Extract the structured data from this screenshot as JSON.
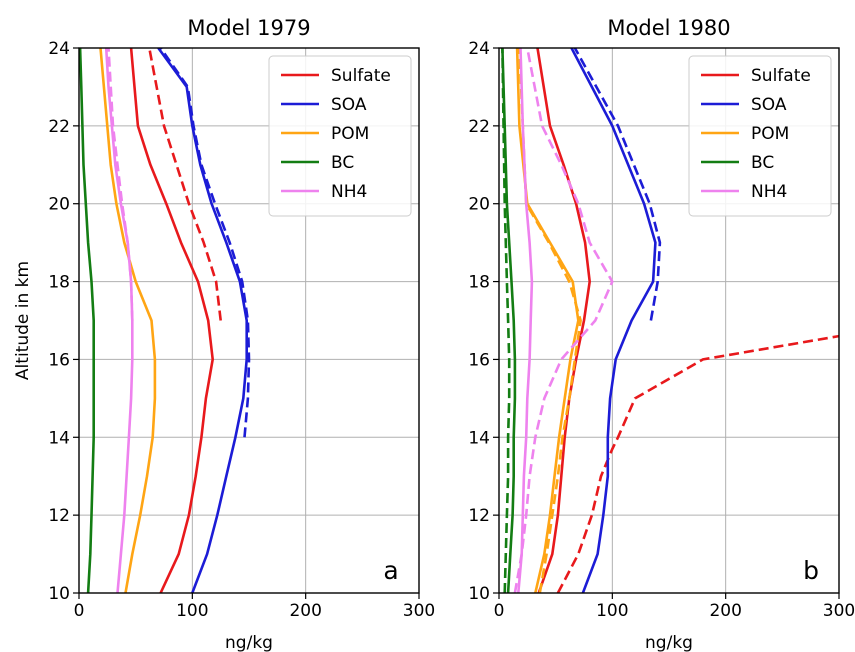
{
  "chart_data": [
    {
      "type": "line",
      "title": "Model 1979",
      "xlabel": "ng/kg",
      "ylabel": "Altitude in km",
      "xlim": [
        0,
        300
      ],
      "ylim": [
        10,
        24
      ],
      "xticks": [
        0,
        100,
        200,
        300
      ],
      "yticks": [
        10,
        12,
        14,
        16,
        18,
        20,
        22,
        24
      ],
      "grid": true,
      "legend_position": "top-right",
      "panel_label": "a",
      "legend": [
        {
          "name": "Sulfate",
          "color": "#e8191c"
        },
        {
          "name": "SOA",
          "color": "#1c1cd6"
        },
        {
          "name": "POM",
          "color": "#ffa514"
        },
        {
          "name": "BC",
          "color": "#137d13"
        },
        {
          "name": "NH4",
          "color": "#ee82ee"
        }
      ],
      "series": [
        {
          "name": "Sulfate",
          "color": "#e8191c",
          "style": "solid",
          "x": [
            72,
            88,
            97,
            103,
            108,
            112,
            118,
            114,
            105,
            90,
            77,
            63,
            52,
            46
          ],
          "y": [
            10,
            11,
            12,
            13,
            14,
            15,
            16,
            17,
            18,
            19,
            20,
            21,
            22,
            24
          ]
        },
        {
          "name": "Sulfate",
          "color": "#e8191c",
          "style": "dashed",
          "x": [
            125,
            121,
            110,
            97,
            86,
            75,
            62
          ],
          "y": [
            17,
            18,
            19,
            20,
            21,
            22,
            24
          ]
        },
        {
          "name": "SOA",
          "color": "#1c1cd6",
          "style": "solid",
          "x": [
            100,
            113,
            122,
            130,
            138,
            145,
            148,
            148,
            142,
            130,
            117,
            107,
            100,
            95,
            70
          ],
          "y": [
            10,
            11,
            12,
            13,
            14,
            15,
            16,
            17,
            18,
            19,
            20,
            21,
            22,
            23,
            24
          ]
        },
        {
          "name": "SOA",
          "color": "#1c1cd6",
          "style": "dashed",
          "x": [
            146,
            149,
            150,
            149,
            144,
            133,
            120,
            108,
            101,
            96,
            72
          ],
          "y": [
            14,
            15,
            16,
            17,
            18,
            19,
            20,
            21,
            22,
            23,
            24
          ]
        },
        {
          "name": "POM",
          "color": "#ffa514",
          "style": "solid",
          "x": [
            41,
            47,
            54,
            60,
            65,
            67,
            67,
            64,
            50,
            40,
            33,
            28,
            25,
            22,
            19
          ],
          "y": [
            10,
            11,
            12,
            13,
            14,
            15,
            16,
            17,
            18,
            19,
            20,
            21,
            22,
            23,
            24
          ]
        },
        {
          "name": "BC",
          "color": "#137d13",
          "style": "solid",
          "x": [
            8,
            10,
            11,
            12,
            13,
            13,
            13,
            13,
            11,
            8,
            6,
            4,
            3,
            2,
            1
          ],
          "y": [
            10,
            11,
            12,
            13,
            14,
            15,
            16,
            17,
            18,
            19,
            20,
            21,
            22,
            23,
            24
          ]
        },
        {
          "name": "NH4",
          "color": "#ee82ee",
          "style": "solid",
          "x": [
            34,
            37,
            40,
            42,
            44,
            46,
            47,
            47,
            46,
            43,
            37,
            32,
            29,
            26,
            24
          ],
          "y": [
            10,
            11,
            12,
            13,
            14,
            15,
            16,
            17,
            18,
            19,
            20,
            21,
            22,
            23,
            24
          ]
        },
        {
          "name": "NH4",
          "color": "#ee82ee",
          "style": "dashed",
          "x": [
            47,
            46,
            43,
            38,
            34,
            30,
            26
          ],
          "y": [
            17,
            18,
            19,
            20,
            21,
            22,
            24
          ]
        }
      ]
    },
    {
      "type": "line",
      "title": "Model 1980",
      "xlabel": "ng/kg",
      "ylabel": "",
      "xlim": [
        0,
        300
      ],
      "ylim": [
        10,
        24
      ],
      "xticks": [
        0,
        100,
        200,
        300
      ],
      "yticks": [
        10,
        12,
        14,
        16,
        18,
        20,
        22,
        24
      ],
      "grid": true,
      "legend_position": "top-right",
      "panel_label": "b",
      "legend": [
        {
          "name": "Sulfate",
          "color": "#e8191c"
        },
        {
          "name": "SOA",
          "color": "#1c1cd6"
        },
        {
          "name": "POM",
          "color": "#ffa514"
        },
        {
          "name": "BC",
          "color": "#137d13"
        },
        {
          "name": "NH4",
          "color": "#ee82ee"
        }
      ],
      "series": [
        {
          "name": "Sulfate",
          "color": "#e8191c",
          "style": "solid",
          "x": [
            35,
            47,
            52,
            55,
            58,
            62,
            68,
            75,
            80,
            76,
            68,
            57,
            45,
            34
          ],
          "y": [
            10,
            11,
            12,
            13,
            14,
            15,
            16,
            17,
            18,
            19,
            20,
            21,
            22,
            24
          ]
        },
        {
          "name": "Sulfate",
          "color": "#e8191c",
          "style": "dashed",
          "x": [
            52,
            70,
            82,
            90,
            100,
            105,
            120,
            180,
            300
          ],
          "y": [
            10,
            11,
            12,
            13,
            13.7,
            14,
            15,
            16,
            16.6
          ]
        },
        {
          "name": "SOA",
          "color": "#1c1cd6",
          "style": "solid",
          "x": [
            74,
            87,
            92,
            96,
            96,
            98,
            103,
            117,
            136,
            138,
            128,
            100,
            64
          ],
          "y": [
            10,
            11,
            12,
            13,
            14,
            15,
            16,
            17,
            18,
            19,
            20,
            22,
            24
          ]
        },
        {
          "name": "SOA",
          "color": "#1c1cd6",
          "style": "dashed",
          "x": [
            134,
            140,
            142,
            133,
            105,
            67
          ],
          "y": [
            17,
            18,
            19,
            20,
            22,
            24
          ]
        },
        {
          "name": "POM",
          "color": "#ffa514",
          "style": "solid",
          "x": [
            32,
            40,
            45,
            49,
            53,
            58,
            63,
            70,
            65,
            45,
            25,
            18,
            16
          ],
          "y": [
            10,
            11,
            12,
            13,
            14,
            15,
            16,
            17,
            18,
            19,
            20,
            22,
            24
          ]
        },
        {
          "name": "POM",
          "color": "#ffa514",
          "style": "dashed",
          "x": [
            36,
            42,
            47,
            52,
            56,
            62,
            67,
            72,
            62,
            44,
            24,
            18
          ],
          "y": [
            10,
            11,
            12,
            13,
            14,
            15,
            16,
            17,
            18,
            19,
            20,
            24
          ]
        },
        {
          "name": "BC",
          "color": "#137d13",
          "style": "solid",
          "x": [
            8,
            10,
            12,
            13,
            13,
            14,
            14,
            13,
            11,
            9,
            7,
            5,
            3
          ],
          "y": [
            10,
            11,
            12,
            13,
            14,
            15,
            16,
            17,
            18,
            19,
            20,
            22,
            24
          ]
        },
        {
          "name": "BC",
          "color": "#137d13",
          "style": "dashed",
          "x": [
            5,
            6,
            7,
            8,
            8,
            9,
            9,
            8,
            7,
            5,
            3
          ],
          "y": [
            10,
            11,
            12,
            13,
            14,
            15,
            16,
            17,
            18,
            20,
            24
          ]
        },
        {
          "name": "NH4",
          "color": "#ee82ee",
          "style": "solid",
          "x": [
            17,
            20,
            21,
            22,
            24,
            25,
            27,
            28,
            29,
            27,
            24,
            21,
            19
          ],
          "y": [
            10,
            11,
            12,
            13,
            14,
            15,
            16,
            17,
            18,
            19,
            20,
            22,
            24
          ]
        },
        {
          "name": "NH4",
          "color": "#ee82ee",
          "style": "dashed",
          "x": [
            14,
            20,
            24,
            27,
            32,
            40,
            55,
            85,
            100,
            80,
            70,
            55,
            38,
            25
          ],
          "y": [
            10,
            11,
            12,
            13,
            14,
            15,
            16,
            17,
            18,
            19,
            20,
            21,
            22,
            24
          ]
        }
      ]
    }
  ]
}
